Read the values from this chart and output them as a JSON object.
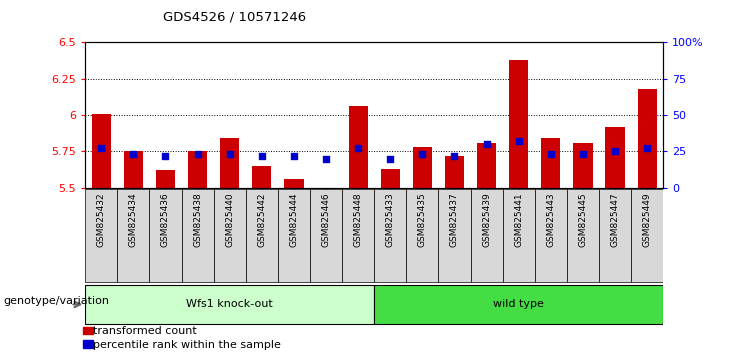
{
  "title": "GDS4526 / 10571246",
  "categories": [
    "GSM825432",
    "GSM825434",
    "GSM825436",
    "GSM825438",
    "GSM825440",
    "GSM825442",
    "GSM825444",
    "GSM825446",
    "GSM825448",
    "GSM825433",
    "GSM825435",
    "GSM825437",
    "GSM825439",
    "GSM825441",
    "GSM825443",
    "GSM825445",
    "GSM825447",
    "GSM825449"
  ],
  "red_values": [
    6.01,
    5.75,
    5.62,
    5.75,
    5.84,
    5.65,
    5.56,
    5.5,
    6.06,
    5.63,
    5.78,
    5.72,
    5.81,
    6.38,
    5.84,
    5.81,
    5.92,
    6.18
  ],
  "blue_values": [
    27,
    23,
    22,
    23,
    23,
    22,
    22,
    20,
    27,
    20,
    23,
    22,
    30,
    32,
    23,
    23,
    25,
    27
  ],
  "group1_label": "Wfs1 knock-out",
  "group2_label": "wild type",
  "group1_count": 9,
  "group2_count": 9,
  "ylim_left": [
    5.5,
    6.5
  ],
  "ylim_right": [
    0,
    100
  ],
  "yticks_left": [
    5.5,
    5.75,
    6.0,
    6.25,
    6.5
  ],
  "yticks_right": [
    0,
    25,
    50,
    75,
    100
  ],
  "ytick_labels_left": [
    "5.5",
    "5.75",
    "6",
    "6.25",
    "6.5"
  ],
  "ytick_labels_right": [
    "0",
    "25",
    "50",
    "75",
    "100%"
  ],
  "hlines": [
    5.75,
    6.0,
    6.25
  ],
  "bar_color": "#cc0000",
  "dot_color": "#0000cc",
  "group1_color": "#ccffcc",
  "group2_color": "#44dd44",
  "bar_bottom": 5.5,
  "bar_width": 0.6,
  "dot_size": 18,
  "legend_label_red": "transformed count",
  "legend_label_blue": "percentile rank within the sample",
  "genotype_label": "genotype/variation"
}
